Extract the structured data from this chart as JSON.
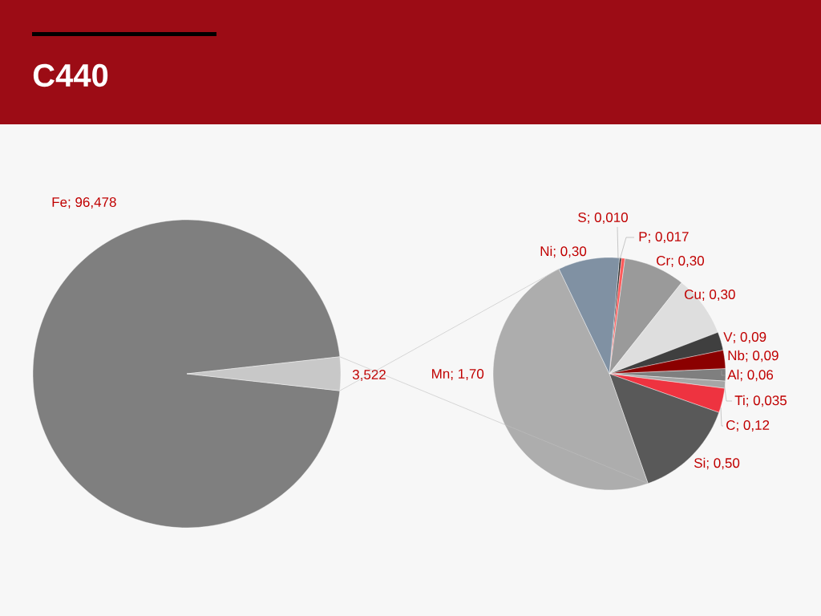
{
  "chart_data": [
    {
      "type": "pie",
      "title": "C440",
      "categories": [
        "Fe",
        null
      ],
      "values": [
        96.478,
        3.522
      ],
      "value_labels": [
        "; 96,478",
        "3,522"
      ],
      "colors": [
        "#7f7f7f",
        "#c8c8c8"
      ]
    },
    {
      "type": "pie",
      "categories": [
        "S",
        "P",
        "Cr",
        "Cu",
        "V",
        "Nb",
        "Al",
        "Ti",
        "C",
        "Si",
        "Mn",
        "Ni"
      ],
      "values": [
        0.01,
        0.017,
        0.3,
        0.3,
        0.09,
        0.09,
        0.06,
        0.035,
        0.12,
        0.5,
        1.7,
        0.3
      ],
      "value_labels": [
        "; 0,010",
        "; 0,017",
        "; 0,30",
        "; 0,30",
        "; 0,09",
        "; 0,09",
        "; 0,06",
        "; 0,035",
        "; 0,12",
        "; 0,50",
        "; 1,70",
        "; 0,30"
      ],
      "colors": [
        "#262626",
        "#ff5a5a",
        "#9a9a9a",
        "#dedede",
        "#3f3f3f",
        "#8b0000",
        "#7f7f7f",
        "#a6a6a6",
        "#ee3340",
        "#595959",
        "#adadad",
        "#8091a3"
      ]
    }
  ]
}
